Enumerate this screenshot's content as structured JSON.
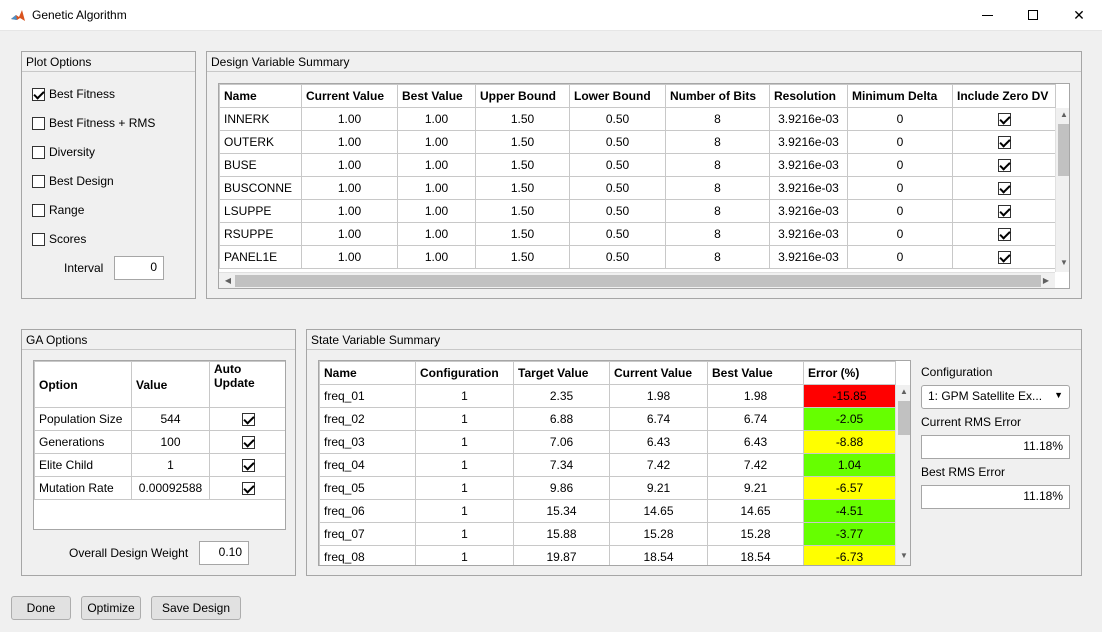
{
  "window": {
    "title": "Genetic Algorithm",
    "icon": "matlab-icon"
  },
  "plot_options": {
    "title": "Plot Options",
    "items": [
      {
        "label": "Best Fitness",
        "checked": true
      },
      {
        "label": "Best Fitness + RMS",
        "checked": false
      },
      {
        "label": "Diversity",
        "checked": false
      },
      {
        "label": "Best Design",
        "checked": false
      },
      {
        "label": "Range",
        "checked": false
      },
      {
        "label": "Scores",
        "checked": false
      }
    ],
    "interval_label": "Interval",
    "interval_value": "0"
  },
  "design_summary": {
    "title": "Design Variable Summary",
    "columns": [
      "Name",
      "Current Value",
      "Best Value",
      "Upper Bound",
      "Lower Bound",
      "Number of Bits",
      "Resolution",
      "Minimum Delta",
      "Include Zero DV"
    ],
    "rows": [
      [
        "INNERK",
        "1.00",
        "1.00",
        "1.50",
        "0.50",
        "8",
        "3.9216e-03",
        "0"
      ],
      [
        "OUTERK",
        "1.00",
        "1.00",
        "1.50",
        "0.50",
        "8",
        "3.9216e-03",
        "0"
      ],
      [
        "BUSE",
        "1.00",
        "1.00",
        "1.50",
        "0.50",
        "8",
        "3.9216e-03",
        "0"
      ],
      [
        "BUSCONNE",
        "1.00",
        "1.00",
        "1.50",
        "0.50",
        "8",
        "3.9216e-03",
        "0"
      ],
      [
        "LSUPPE",
        "1.00",
        "1.00",
        "1.50",
        "0.50",
        "8",
        "3.9216e-03",
        "0"
      ],
      [
        "RSUPPE",
        "1.00",
        "1.00",
        "1.50",
        "0.50",
        "8",
        "3.9216e-03",
        "0"
      ],
      [
        "PANEL1E",
        "1.00",
        "1.00",
        "1.50",
        "0.50",
        "8",
        "3.9216e-03",
        "0"
      ]
    ]
  },
  "ga_options": {
    "title": "GA Options",
    "columns": [
      "Option",
      "Value",
      "Auto\nUpdate"
    ],
    "rows": [
      [
        "Population Size",
        "544"
      ],
      [
        "Generations",
        "100"
      ],
      [
        "Elite Child",
        "1"
      ],
      [
        "Mutation Rate",
        "0.00092588"
      ]
    ],
    "weight_label": "Overall Design Weight",
    "weight_value": "0.10"
  },
  "state_summary": {
    "title": "State Variable Summary",
    "columns": [
      "Name",
      "Configuration",
      "Target Value",
      "Current Value",
      "Best Value",
      "Error (%)"
    ],
    "rows": [
      [
        "freq_01",
        "1",
        "2.35",
        "1.98",
        "1.98",
        "-15.85"
      ],
      [
        "freq_02",
        "1",
        "6.88",
        "6.74",
        "6.74",
        "-2.05"
      ],
      [
        "freq_03",
        "1",
        "7.06",
        "6.43",
        "6.43",
        "-8.88"
      ],
      [
        "freq_04",
        "1",
        "7.34",
        "7.42",
        "7.42",
        "1.04"
      ],
      [
        "freq_05",
        "1",
        "9.86",
        "9.21",
        "9.21",
        "-6.57"
      ],
      [
        "freq_06",
        "1",
        "15.34",
        "14.65",
        "14.65",
        "-4.51"
      ],
      [
        "freq_07",
        "1",
        "15.88",
        "15.28",
        "15.28",
        "-3.77"
      ],
      [
        "freq_08",
        "1",
        "19.87",
        "18.54",
        "18.54",
        "-6.73"
      ]
    ],
    "error_colors": [
      "#ff0000",
      "#66ff00",
      "#ffff00",
      "#66ff00",
      "#ffff00",
      "#66ff00",
      "#66ff00",
      "#ffff00"
    ],
    "configuration_label": "Configuration",
    "configuration_value": "1: GPM Satellite Ex...",
    "current_rms_label": "Current RMS Error",
    "current_rms_value": "11.18%",
    "best_rms_label": "Best RMS Error",
    "best_rms_value": "11.18%"
  },
  "buttons": {
    "done": "Done",
    "optimize": "Optimize",
    "save_design": "Save Design"
  }
}
